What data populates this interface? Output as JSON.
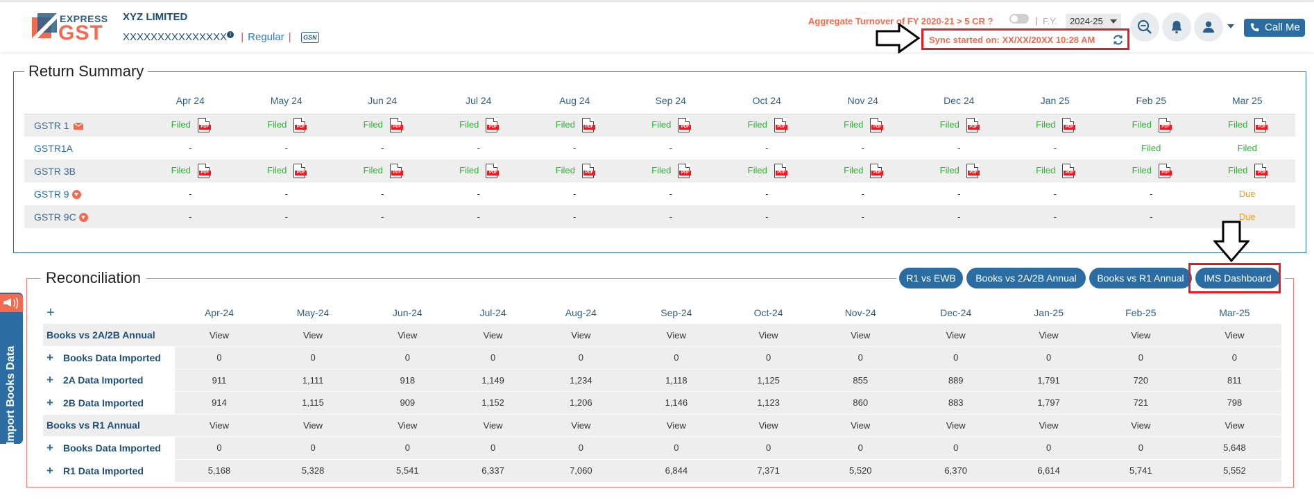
{
  "header": {
    "logo_top": "EXPRESS",
    "logo_bottom": "GST",
    "company": "XYZ LIMITED",
    "gstin": "XXXXXXXXXXXXXXX",
    "gstin_info": "i",
    "separator": "|",
    "taxpayer_type": "Regular",
    "gsn_label": "GSN",
    "aggregate_turnover": "Aggregate Turnover of FY 2020-21 > 5 CR ?",
    "fy_label": "F.Y.",
    "fy_value": "2024-25",
    "sync_text": "Sync started on: XX/XX/20XX 10:28 AM",
    "call_me": "Call Me"
  },
  "return_summary": {
    "title": "Return Summary",
    "months": [
      "Apr 24",
      "May 24",
      "Jun 24",
      "Jul 24",
      "Aug 24",
      "Sep 24",
      "Oct 24",
      "Nov 24",
      "Dec 24",
      "Jan 25",
      "Feb 25",
      "Mar 25"
    ],
    "pdf_label": "PDF",
    "rows": [
      {
        "label": "GSTR 1",
        "icon": "mail-icon",
        "cells": [
          "Filed",
          "Filed",
          "Filed",
          "Filed",
          "Filed",
          "Filed",
          "Filed",
          "Filed",
          "Filed",
          "Filed",
          "Filed",
          "Filed"
        ],
        "pdf": [
          true,
          true,
          true,
          true,
          true,
          true,
          true,
          true,
          true,
          true,
          true,
          true
        ]
      },
      {
        "label": "GSTR1A",
        "icon": "",
        "cells": [
          "-",
          "-",
          "-",
          "-",
          "-",
          "-",
          "-",
          "-",
          "-",
          "-",
          "Filed",
          "Filed"
        ],
        "pdf": [
          false,
          false,
          false,
          false,
          false,
          false,
          false,
          false,
          false,
          false,
          false,
          false
        ]
      },
      {
        "label": "GSTR 3B",
        "icon": "",
        "cells": [
          "Filed",
          "Filed",
          "Filed",
          "Filed",
          "Filed",
          "Filed",
          "Filed",
          "Filed",
          "Filed",
          "Filed",
          "Filed",
          "Filed"
        ],
        "pdf": [
          true,
          true,
          true,
          true,
          true,
          true,
          true,
          true,
          true,
          true,
          true,
          true
        ]
      },
      {
        "label": "GSTR 9",
        "icon": "download-icon",
        "cells": [
          "-",
          "-",
          "-",
          "-",
          "-",
          "-",
          "-",
          "-",
          "-",
          "-",
          "-",
          "Due"
        ],
        "pdf": [
          false,
          false,
          false,
          false,
          false,
          false,
          false,
          false,
          false,
          false,
          false,
          false
        ]
      },
      {
        "label": "GSTR 9C",
        "icon": "download-icon",
        "cells": [
          "-",
          "-",
          "-",
          "-",
          "-",
          "-",
          "-",
          "-",
          "-",
          "-",
          "-",
          "Due"
        ],
        "pdf": [
          false,
          false,
          false,
          false,
          false,
          false,
          false,
          false,
          false,
          false,
          false,
          false
        ]
      }
    ]
  },
  "reconciliation": {
    "title": "Reconciliation",
    "buttons": [
      "R1 vs EWB",
      "Books vs 2A/2B Annual",
      "Books vs R1 Annual",
      "IMS Dashboard"
    ],
    "expand_all": "+",
    "months": [
      "Apr-24",
      "May-24",
      "Jun-24",
      "Jul-24",
      "Aug-24",
      "Sep-24",
      "Oct-24",
      "Nov-24",
      "Dec-24",
      "Jan-25",
      "Feb-25",
      "Mar-25"
    ],
    "rows": [
      {
        "label": "Books vs 2A/2B Annual",
        "expandable": false,
        "cells": [
          "View",
          "View",
          "View",
          "View",
          "View",
          "View",
          "View",
          "View",
          "View",
          "View",
          "View",
          "View"
        ]
      },
      {
        "label": "Books Data Imported",
        "expandable": true,
        "cells": [
          "0",
          "0",
          "0",
          "0",
          "0",
          "0",
          "0",
          "0",
          "0",
          "0",
          "0",
          "0"
        ]
      },
      {
        "label": "2A Data Imported",
        "expandable": true,
        "cells": [
          "911",
          "1,111",
          "918",
          "1,149",
          "1,234",
          "1,118",
          "1,125",
          "855",
          "889",
          "1,791",
          "720",
          "811"
        ]
      },
      {
        "label": "2B Data Imported",
        "expandable": true,
        "cells": [
          "914",
          "1,115",
          "909",
          "1,152",
          "1,206",
          "1,146",
          "1,123",
          "860",
          "883",
          "1,797",
          "721",
          "798"
        ]
      },
      {
        "label": "Books vs R1 Annual",
        "expandable": false,
        "cells": [
          "View",
          "View",
          "View",
          "View",
          "View",
          "View",
          "View",
          "View",
          "View",
          "View",
          "View",
          "View"
        ]
      },
      {
        "label": "Books Data Imported",
        "expandable": true,
        "cells": [
          "0",
          "0",
          "0",
          "0",
          "0",
          "0",
          "0",
          "0",
          "0",
          "0",
          "0",
          "5,648"
        ]
      },
      {
        "label": "R1 Data Imported",
        "expandable": true,
        "cells": [
          "5,168",
          "5,328",
          "5,541",
          "6,337",
          "7,060",
          "6,844",
          "7,371",
          "5,520",
          "6,370",
          "6,614",
          "5,741",
          "5,552"
        ]
      }
    ]
  },
  "side_tab": {
    "label": "Import Books Data"
  },
  "colors": {
    "brand_blue": "#2b6da3",
    "brand_orange": "#f06b4f",
    "filed_green": "#27b82c",
    "due_orange": "#f39c12",
    "highlight_red": "#e41c23"
  }
}
